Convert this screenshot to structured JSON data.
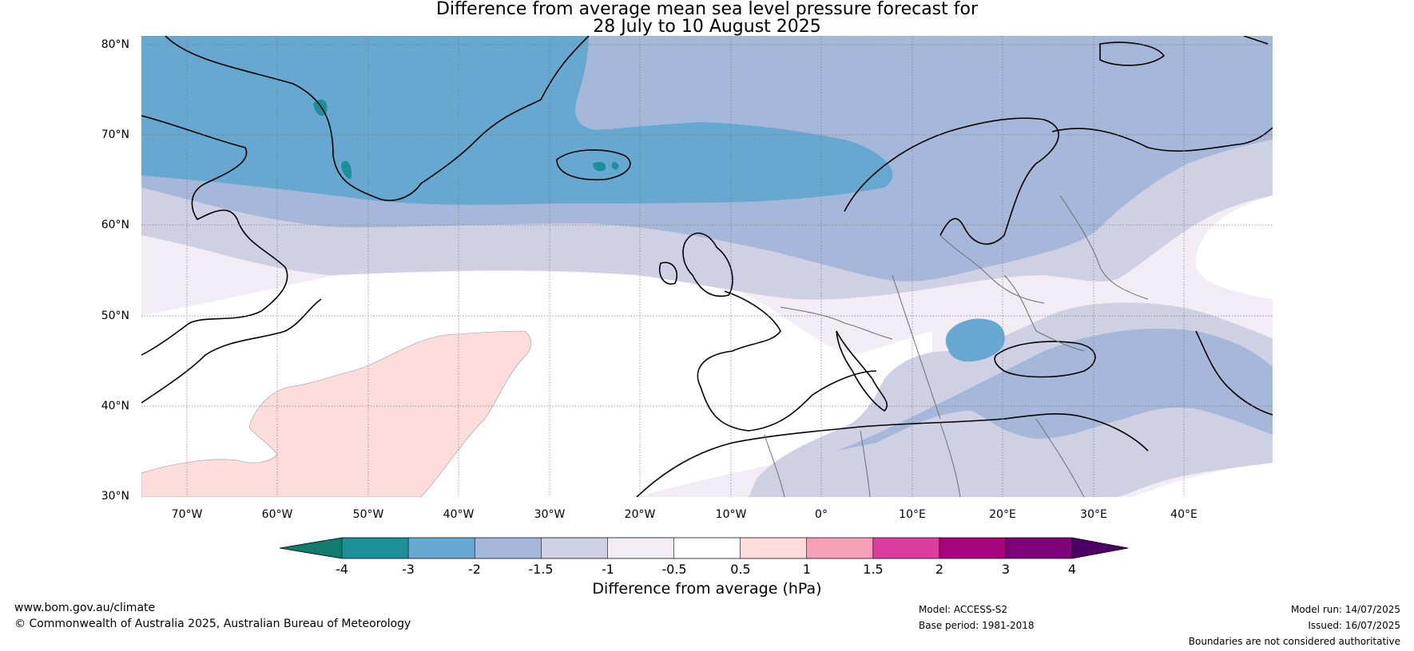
{
  "title": {
    "line1": "Difference from average mean sea level pressure forecast for",
    "line2": "28 July to 10 August 2025"
  },
  "map": {
    "lat_labels": [
      "80°N",
      "70°N",
      "60°N",
      "50°N",
      "40°N",
      "30°N"
    ],
    "lon_labels": [
      "70°W",
      "60°W",
      "50°W",
      "40°W",
      "30°W",
      "20°W",
      "10°W",
      "0°",
      "10°E",
      "20°E",
      "30°E",
      "40°E"
    ],
    "gridlines": true
  },
  "colorbar": {
    "ticks": [
      "-4",
      "-3",
      "-2",
      "-1.5",
      "-1",
      "-0.5",
      "0.5",
      "1",
      "1.5",
      "2",
      "3",
      "4"
    ],
    "colors": [
      "#0f7c6e",
      "#1b9099",
      "#66a8d0",
      "#a6b8da",
      "#d0d0e4",
      "#f2ecf5",
      "#ffffff",
      "#fddcdc",
      "#f6a0b9",
      "#dc3da0",
      "#a8047e",
      "#7e007a",
      "#4c0066"
    ],
    "label": "Difference from average (hPa)"
  },
  "footer": {
    "website": "www.bom.gov.au/climate",
    "copyright": "© Commonwealth of Australia 2025, Australian Bureau of Meteorology",
    "model": "Model: ACCESS-S2",
    "base_period": "Base period: 1981-2018",
    "model_run": "Model run: 14/07/2025",
    "issued": "Issued: 16/07/2025",
    "disclaimer": "Boundaries are not considered authoritative"
  }
}
